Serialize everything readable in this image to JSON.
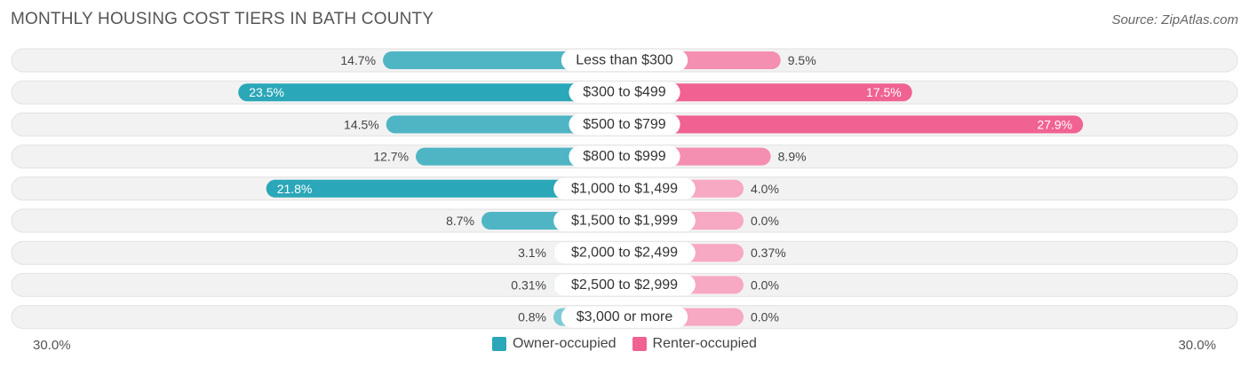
{
  "colors": {
    "owner": "#2aa7b8",
    "owner_light": "#7ecbd5",
    "renter": "#f06292",
    "renter_light": "#f7a8c3",
    "track": "#f1f1f1"
  },
  "chart_data": {
    "type": "bar",
    "orientation": "horizontal-diverging",
    "title": "MONTHLY HOUSING COST TIERS IN BATH COUNTY",
    "source": "Source: ZipAtlas.com",
    "categories": [
      "Less than $300",
      "$300 to $499",
      "$500 to $799",
      "$800 to $999",
      "$1,000 to $1,499",
      "$1,500 to $1,999",
      "$2,000 to $2,499",
      "$2,500 to $2,999",
      "$3,000 or more"
    ],
    "series": [
      {
        "name": "Owner-occupied",
        "values": [
          14.7,
          23.5,
          14.5,
          12.7,
          21.8,
          8.7,
          3.1,
          0.31,
          0.8
        ],
        "labels": [
          "14.7%",
          "23.5%",
          "14.5%",
          "12.7%",
          "21.8%",
          "8.7%",
          "3.1%",
          "0.31%",
          "0.8%"
        ]
      },
      {
        "name": "Renter-occupied",
        "values": [
          9.5,
          17.5,
          27.9,
          8.9,
          4.0,
          0.0,
          0.37,
          0.0,
          0.0
        ],
        "labels": [
          "9.5%",
          "17.5%",
          "27.9%",
          "8.9%",
          "4.0%",
          "0.0%",
          "0.37%",
          "0.0%",
          "0.0%"
        ]
      }
    ],
    "axis": {
      "left_label": "30.0%",
      "right_label": "30.0%",
      "max": 30.0
    },
    "legend_position": "bottom-center"
  }
}
